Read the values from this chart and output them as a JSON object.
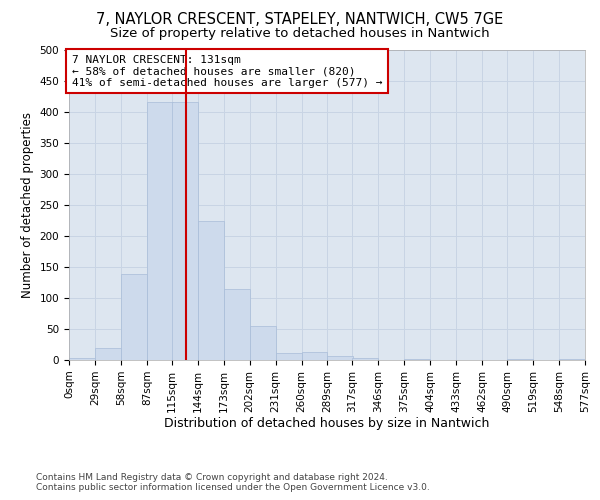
{
  "title": "7, NAYLOR CRESCENT, STAPELEY, NANTWICH, CW5 7GE",
  "subtitle": "Size of property relative to detached houses in Nantwich",
  "xlabel_bottom": "Distribution of detached houses by size in Nantwich",
  "ylabel": "Number of detached properties",
  "footnote": "Contains HM Land Registry data © Crown copyright and database right 2024.\nContains public sector information licensed under the Open Government Licence v3.0.",
  "property_size": 131,
  "annotation_title": "7 NAYLOR CRESCENT: 131sqm",
  "annotation_line1": "← 58% of detached houses are smaller (820)",
  "annotation_line2": "41% of semi-detached houses are larger (577) →",
  "bar_color": "#cddaec",
  "bar_edge_color": "#a8bcd8",
  "vline_color": "#cc0000",
  "annotation_box_color": "#cc0000",
  "background_color": "#ffffff",
  "grid_color": "#c8d4e4",
  "ax_bg_color": "#dde6f0",
  "bin_edges": [
    0,
    29,
    58,
    87,
    115,
    144,
    173,
    202,
    231,
    260,
    289,
    317,
    346,
    375,
    404,
    433,
    462,
    490,
    519,
    548,
    577
  ],
  "bar_heights": [
    3,
    20,
    138,
    416,
    416,
    224,
    114,
    55,
    11,
    13,
    6,
    4,
    0,
    1,
    0,
    0,
    0,
    1,
    0,
    1
  ],
  "xlim": [
    0,
    577
  ],
  "ylim": [
    0,
    500
  ],
  "yticks": [
    0,
    50,
    100,
    150,
    200,
    250,
    300,
    350,
    400,
    450,
    500
  ],
  "title_fontsize": 10.5,
  "subtitle_fontsize": 9.5,
  "ylabel_fontsize": 8.5,
  "xlabel_fontsize": 9,
  "tick_fontsize": 7.5,
  "annotation_fontsize": 8,
  "footnote_fontsize": 6.5
}
